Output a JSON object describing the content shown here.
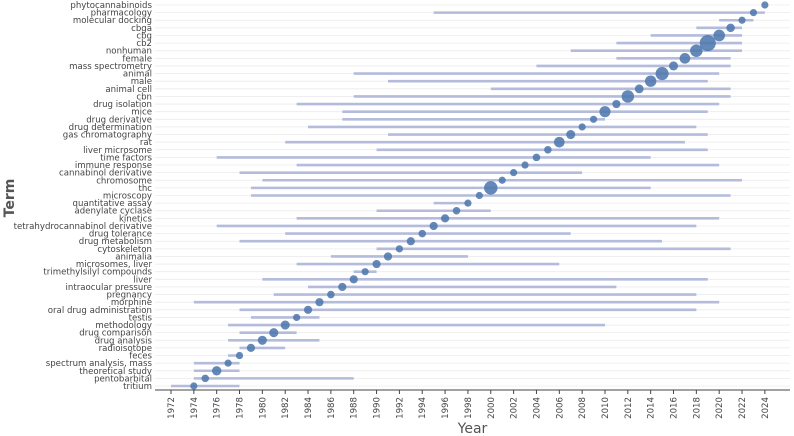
{
  "chart_data": {
    "type": "scatter",
    "xlabel": "Year",
    "ylabel": "Term",
    "xlim": [
      1970.6,
      2026.2
    ],
    "x_ticks": [
      1972,
      1974,
      1976,
      1978,
      1980,
      1982,
      1984,
      1986,
      1988,
      1990,
      1992,
      1994,
      1996,
      1998,
      2000,
      2002,
      2004,
      2006,
      2008,
      2010,
      2012,
      2014,
      2016,
      2018,
      2020,
      2022,
      2024
    ],
    "colors": {
      "range_bar": "#b4bbdb",
      "point": "#4f77ad",
      "grid": "#ebebeb",
      "axis": "#444444"
    },
    "terms": [
      {
        "term": "phytocannabinoids",
        "start": 2024,
        "end": 2024,
        "peak": 2024,
        "size": 1
      },
      {
        "term": "pharmacology",
        "start": 1995,
        "end": 2024,
        "peak": 2023,
        "size": 1
      },
      {
        "term": "molecular docking",
        "start": 2020,
        "end": 2023,
        "peak": 2022,
        "size": 1
      },
      {
        "term": "cbga",
        "start": 2018,
        "end": 2022,
        "peak": 2021,
        "size": 1.4
      },
      {
        "term": "cbg",
        "start": 2014,
        "end": 2022,
        "peak": 2020,
        "size": 2.6
      },
      {
        "term": "cb2",
        "start": 2011,
        "end": 2022,
        "peak": 2019,
        "size": 5
      },
      {
        "term": "nonhuman",
        "start": 2007,
        "end": 2022,
        "peak": 2018,
        "size": 3
      },
      {
        "term": "female",
        "start": 2011,
        "end": 2021,
        "peak": 2017,
        "size": 2.2
      },
      {
        "term": "mass spectrometry",
        "start": 2004,
        "end": 2021,
        "peak": 2016,
        "size": 1.6
      },
      {
        "term": "animal",
        "start": 1988,
        "end": 2020,
        "peak": 2015,
        "size": 3.3
      },
      {
        "term": "male",
        "start": 1991,
        "end": 2019,
        "peak": 2014,
        "size": 2.5
      },
      {
        "term": "animal cell",
        "start": 2000,
        "end": 2021,
        "peak": 2013,
        "size": 1.5
      },
      {
        "term": "cbn",
        "start": 1988,
        "end": 2021,
        "peak": 2012,
        "size": 3
      },
      {
        "term": "drug isolation",
        "start": 1983,
        "end": 2020,
        "peak": 2011,
        "size": 1.3
      },
      {
        "term": "mice",
        "start": 1987,
        "end": 2019,
        "peak": 2010,
        "size": 2.4
      },
      {
        "term": "drug derivative",
        "start": 1987,
        "end": 2010,
        "peak": 2009,
        "size": 1
      },
      {
        "term": "drug determination",
        "start": 1984,
        "end": 2018,
        "peak": 2008,
        "size": 1
      },
      {
        "term": "gas chromatography",
        "start": 1991,
        "end": 2019,
        "peak": 2007,
        "size": 1.6
      },
      {
        "term": "rat",
        "start": 1982,
        "end": 2017,
        "peak": 2006,
        "size": 2.2
      },
      {
        "term": "liver microsome",
        "start": 1990,
        "end": 2019,
        "peak": 2005,
        "size": 1.1
      },
      {
        "term": "time factors",
        "start": 1976,
        "end": 2014,
        "peak": 2004,
        "size": 1.1
      },
      {
        "term": "immune response",
        "start": 1983,
        "end": 2020,
        "peak": 2003,
        "size": 1
      },
      {
        "term": "cannabinol derivative",
        "start": 1978,
        "end": 2008,
        "peak": 2002,
        "size": 1
      },
      {
        "term": "chromosome",
        "start": 1980,
        "end": 2022,
        "peak": 2001,
        "size": 1
      },
      {
        "term": "thc",
        "start": 1979,
        "end": 2014,
        "peak": 2000,
        "size": 3.5
      },
      {
        "term": "microscopy",
        "start": 1979,
        "end": 2021,
        "peak": 1999,
        "size": 1
      },
      {
        "term": "quantitative assay",
        "start": 1995,
        "end": 1998,
        "peak": 1998,
        "size": 1
      },
      {
        "term": "adenylate cyclase",
        "start": 1990,
        "end": 2000,
        "peak": 1997,
        "size": 1.1
      },
      {
        "term": "kinetics",
        "start": 1983,
        "end": 2020,
        "peak": 1996,
        "size": 1.3
      },
      {
        "term": "tetrahydrocannabinol derivative",
        "start": 1976,
        "end": 2018,
        "peak": 1995,
        "size": 1.3
      },
      {
        "term": "drug tolerance",
        "start": 1982,
        "end": 2007,
        "peak": 1994,
        "size": 1.1
      },
      {
        "term": "drug metabolism",
        "start": 1978,
        "end": 2015,
        "peak": 1993,
        "size": 1.3
      },
      {
        "term": "cytoskeleton",
        "start": 1990,
        "end": 2021,
        "peak": 1992,
        "size": 1
      },
      {
        "term": "animalia",
        "start": 1986,
        "end": 1998,
        "peak": 1991,
        "size": 1.3
      },
      {
        "term": "microsomes, liver",
        "start": 1983,
        "end": 2006,
        "peak": 1990,
        "size": 1.3
      },
      {
        "term": "trimethylsilyl compounds",
        "start": 1988,
        "end": 1990,
        "peak": 1989,
        "size": 1
      },
      {
        "term": "liver",
        "start": 1980,
        "end": 2019,
        "peak": 1988,
        "size": 1.3
      },
      {
        "term": "intraocular pressure",
        "start": 1984,
        "end": 2011,
        "peak": 1987,
        "size": 1.3
      },
      {
        "term": "pregnancy",
        "start": 1981,
        "end": 2018,
        "peak": 1986,
        "size": 1.1
      },
      {
        "term": "morphine",
        "start": 1974,
        "end": 2020,
        "peak": 1985,
        "size": 1.3
      },
      {
        "term": "oral drug administration",
        "start": 1978,
        "end": 2018,
        "peak": 1984,
        "size": 1.3
      },
      {
        "term": "testis",
        "start": 1979,
        "end": 1985,
        "peak": 1983,
        "size": 1
      },
      {
        "term": "methodology",
        "start": 1977,
        "end": 2010,
        "peak": 1982,
        "size": 1.6
      },
      {
        "term": "drug comparison",
        "start": 1978,
        "end": 1983,
        "peak": 1981,
        "size": 1.6
      },
      {
        "term": "drug analysis",
        "start": 1977,
        "end": 1985,
        "peak": 1980,
        "size": 1.6
      },
      {
        "term": "radioisotope",
        "start": 1978,
        "end": 1982,
        "peak": 1979,
        "size": 1.3
      },
      {
        "term": "feces",
        "start": 1977,
        "end": 1978,
        "peak": 1978,
        "size": 1
      },
      {
        "term": "spectrum analysis, mass",
        "start": 1974,
        "end": 1978,
        "peak": 1977,
        "size": 1
      },
      {
        "term": "theoretical study",
        "start": 1974,
        "end": 1978,
        "peak": 1976,
        "size": 1.7
      },
      {
        "term": "pentobarbital",
        "start": 1974,
        "end": 1988,
        "peak": 1975,
        "size": 1.1
      },
      {
        "term": "tritium",
        "start": 1972,
        "end": 1978,
        "peak": 1974,
        "size": 1
      }
    ]
  }
}
